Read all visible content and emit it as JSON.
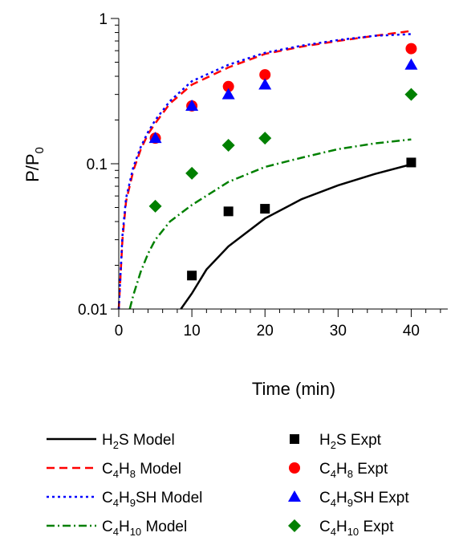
{
  "chart_data": {
    "type": "scatter",
    "xlabel": "Time (min)",
    "ylabel": {
      "base": "P/P",
      "sub": "0"
    },
    "xlim": [
      0,
      45
    ],
    "ylim": [
      0.01,
      1
    ],
    "y_scale": "log",
    "grid": false,
    "x_ticks": [
      {
        "value": 0,
        "label": "0"
      },
      {
        "value": 10,
        "label": "10"
      },
      {
        "value": 20,
        "label": "20"
      },
      {
        "value": 30,
        "label": "30"
      },
      {
        "value": 40,
        "label": "40"
      }
    ],
    "y_ticks": [
      {
        "value": 0.01,
        "label": "0.01"
      },
      {
        "value": 0.1,
        "label": "0.1"
      },
      {
        "value": 1,
        "label": "1"
      }
    ],
    "legend_position": "below",
    "model_series": [
      {
        "id": "h2s-model",
        "color": "#000000",
        "dash": "solid",
        "legend": [
          [
            "H",
            ""
          ],
          [
            "2",
            "sub"
          ],
          [
            "S Model",
            ""
          ]
        ],
        "points": [
          [
            8.5,
            0.01
          ],
          [
            10,
            0.0128
          ],
          [
            12,
            0.0187
          ],
          [
            15,
            0.027
          ],
          [
            20,
            0.042
          ],
          [
            25,
            0.057
          ],
          [
            30,
            0.071
          ],
          [
            35,
            0.085
          ],
          [
            40,
            0.099
          ]
        ]
      },
      {
        "id": "c4h8-model",
        "color": "#ff0000",
        "dash": "dashed",
        "legend": [
          [
            "C",
            ""
          ],
          [
            "4",
            "sub"
          ],
          [
            "H",
            ""
          ],
          [
            "8",
            "sub"
          ],
          [
            " Model",
            ""
          ]
        ],
        "points": [
          [
            0,
            0.01
          ],
          [
            0.5,
            0.03
          ],
          [
            1,
            0.055
          ],
          [
            2,
            0.09
          ],
          [
            3,
            0.125
          ],
          [
            4,
            0.16
          ],
          [
            5,
            0.19
          ],
          [
            7,
            0.26
          ],
          [
            10,
            0.35
          ],
          [
            15,
            0.46
          ],
          [
            20,
            0.57
          ],
          [
            25,
            0.64
          ],
          [
            30,
            0.7
          ],
          [
            35,
            0.76
          ],
          [
            40,
            0.82
          ]
        ]
      },
      {
        "id": "c4h9sh-model",
        "color": "#0000ff",
        "dash": "dotted",
        "legend": [
          [
            "C",
            ""
          ],
          [
            "4",
            "sub"
          ],
          [
            "H",
            ""
          ],
          [
            "9",
            "sub"
          ],
          [
            "SH Model",
            ""
          ]
        ],
        "points": [
          [
            0,
            0.01
          ],
          [
            0.5,
            0.032
          ],
          [
            1,
            0.058
          ],
          [
            2,
            0.095
          ],
          [
            3,
            0.13
          ],
          [
            4,
            0.165
          ],
          [
            5,
            0.2
          ],
          [
            7,
            0.27
          ],
          [
            10,
            0.37
          ],
          [
            15,
            0.48
          ],
          [
            20,
            0.58
          ],
          [
            25,
            0.65
          ],
          [
            30,
            0.71
          ],
          [
            35,
            0.76
          ],
          [
            40,
            0.78
          ]
        ]
      },
      {
        "id": "c4h10-model",
        "color": "#008000",
        "dash": "dashdot",
        "legend": [
          [
            "C",
            ""
          ],
          [
            "4",
            "sub"
          ],
          [
            "H",
            ""
          ],
          [
            "10",
            "sub"
          ],
          [
            " Model",
            ""
          ]
        ],
        "points": [
          [
            1.5,
            0.01
          ],
          [
            2,
            0.0125
          ],
          [
            3,
            0.018
          ],
          [
            4,
            0.024
          ],
          [
            5,
            0.03
          ],
          [
            7,
            0.04
          ],
          [
            10,
            0.052
          ],
          [
            15,
            0.075
          ],
          [
            20,
            0.095
          ],
          [
            25,
            0.11
          ],
          [
            30,
            0.126
          ],
          [
            35,
            0.138
          ],
          [
            40,
            0.147
          ]
        ]
      }
    ],
    "expt_series": [
      {
        "id": "h2s-expt",
        "color": "#000000",
        "marker": "square",
        "legend": [
          [
            "H",
            ""
          ],
          [
            "2",
            "sub"
          ],
          [
            "S Expt",
            ""
          ]
        ],
        "points": [
          [
            10,
            0.017
          ],
          [
            15,
            0.047
          ],
          [
            20,
            0.049
          ],
          [
            40,
            0.102
          ]
        ]
      },
      {
        "id": "c4h8-expt",
        "color": "#ff0000",
        "marker": "circle",
        "legend": [
          [
            "C",
            ""
          ],
          [
            "4",
            "sub"
          ],
          [
            "H",
            ""
          ],
          [
            "8",
            "sub"
          ],
          [
            " Expt",
            ""
          ]
        ],
        "points": [
          [
            5,
            0.15
          ],
          [
            10,
            0.25
          ],
          [
            15,
            0.34
          ],
          [
            20,
            0.41
          ],
          [
            40,
            0.62
          ]
        ]
      },
      {
        "id": "c4h9sh-expt",
        "color": "#0000ff",
        "marker": "triangle",
        "legend": [
          [
            "C",
            ""
          ],
          [
            "4",
            "sub"
          ],
          [
            "H",
            ""
          ],
          [
            "9",
            "sub"
          ],
          [
            "SH Expt",
            ""
          ]
        ],
        "points": [
          [
            5,
            0.15
          ],
          [
            10,
            0.25
          ],
          [
            15,
            0.3
          ],
          [
            20,
            0.35
          ],
          [
            40,
            0.48
          ]
        ]
      },
      {
        "id": "c4h10-expt",
        "color": "#008000",
        "marker": "diamond",
        "legend": [
          [
            "C",
            ""
          ],
          [
            "4",
            "sub"
          ],
          [
            "H",
            ""
          ],
          [
            "10",
            "sub"
          ],
          [
            " Expt",
            ""
          ]
        ],
        "points": [
          [
            5,
            0.051
          ],
          [
            10,
            0.086
          ],
          [
            15,
            0.134
          ],
          [
            20,
            0.15
          ],
          [
            40,
            0.3
          ]
        ]
      }
    ]
  }
}
